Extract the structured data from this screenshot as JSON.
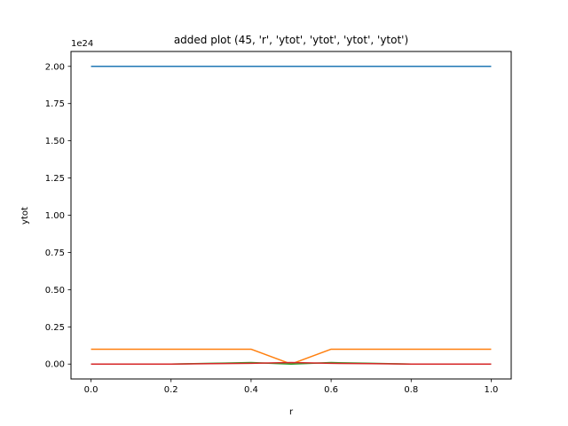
{
  "chart_data": {
    "type": "line",
    "title": "added plot (45, 'r', 'ytot', 'ytot', 'ytot', 'ytot')",
    "xlabel": "r",
    "ylabel": "ytot",
    "offset_text": "1e24",
    "xlim": [
      -0.05,
      1.05
    ],
    "ylim": [
      -0.1,
      2.1
    ],
    "xticks": [
      0.0,
      0.2,
      0.4,
      0.6,
      0.8,
      1.0
    ],
    "xtick_labels": [
      "0.0",
      "0.2",
      "0.4",
      "0.6",
      "0.8",
      "1.0"
    ],
    "yticks": [
      0.0,
      0.25,
      0.5,
      0.75,
      1.0,
      1.25,
      1.5,
      1.75,
      2.0
    ],
    "ytick_labels": [
      "0.00",
      "0.25",
      "0.50",
      "0.75",
      "1.00",
      "1.25",
      "1.50",
      "1.75",
      "2.00"
    ],
    "grid": false,
    "legend": false,
    "x": [
      0.0,
      0.1,
      0.2,
      0.3,
      0.4,
      0.5,
      0.6,
      0.7,
      0.8,
      0.9,
      1.0
    ],
    "series": [
      {
        "color": "#1f77b4",
        "values": [
          2.0,
          2.0,
          2.0,
          2.0,
          2.0,
          2.0,
          2.0,
          2.0,
          2.0,
          2.0,
          2.0
        ]
      },
      {
        "color": "#ff7f0e",
        "values": [
          0.1,
          0.1,
          0.1,
          0.1,
          0.1,
          0.0,
          0.1,
          0.1,
          0.1,
          0.1,
          0.1
        ]
      },
      {
        "color": "#2ca02c",
        "values": [
          0.0,
          0.0,
          0.0,
          0.005,
          0.01,
          0.0,
          0.01,
          0.005,
          0.0,
          0.0,
          0.0
        ]
      },
      {
        "color": "#d62728",
        "values": [
          0.0,
          0.0,
          0.0,
          0.003,
          0.005,
          0.01,
          0.005,
          0.003,
          0.0,
          0.0,
          0.0
        ]
      }
    ]
  }
}
